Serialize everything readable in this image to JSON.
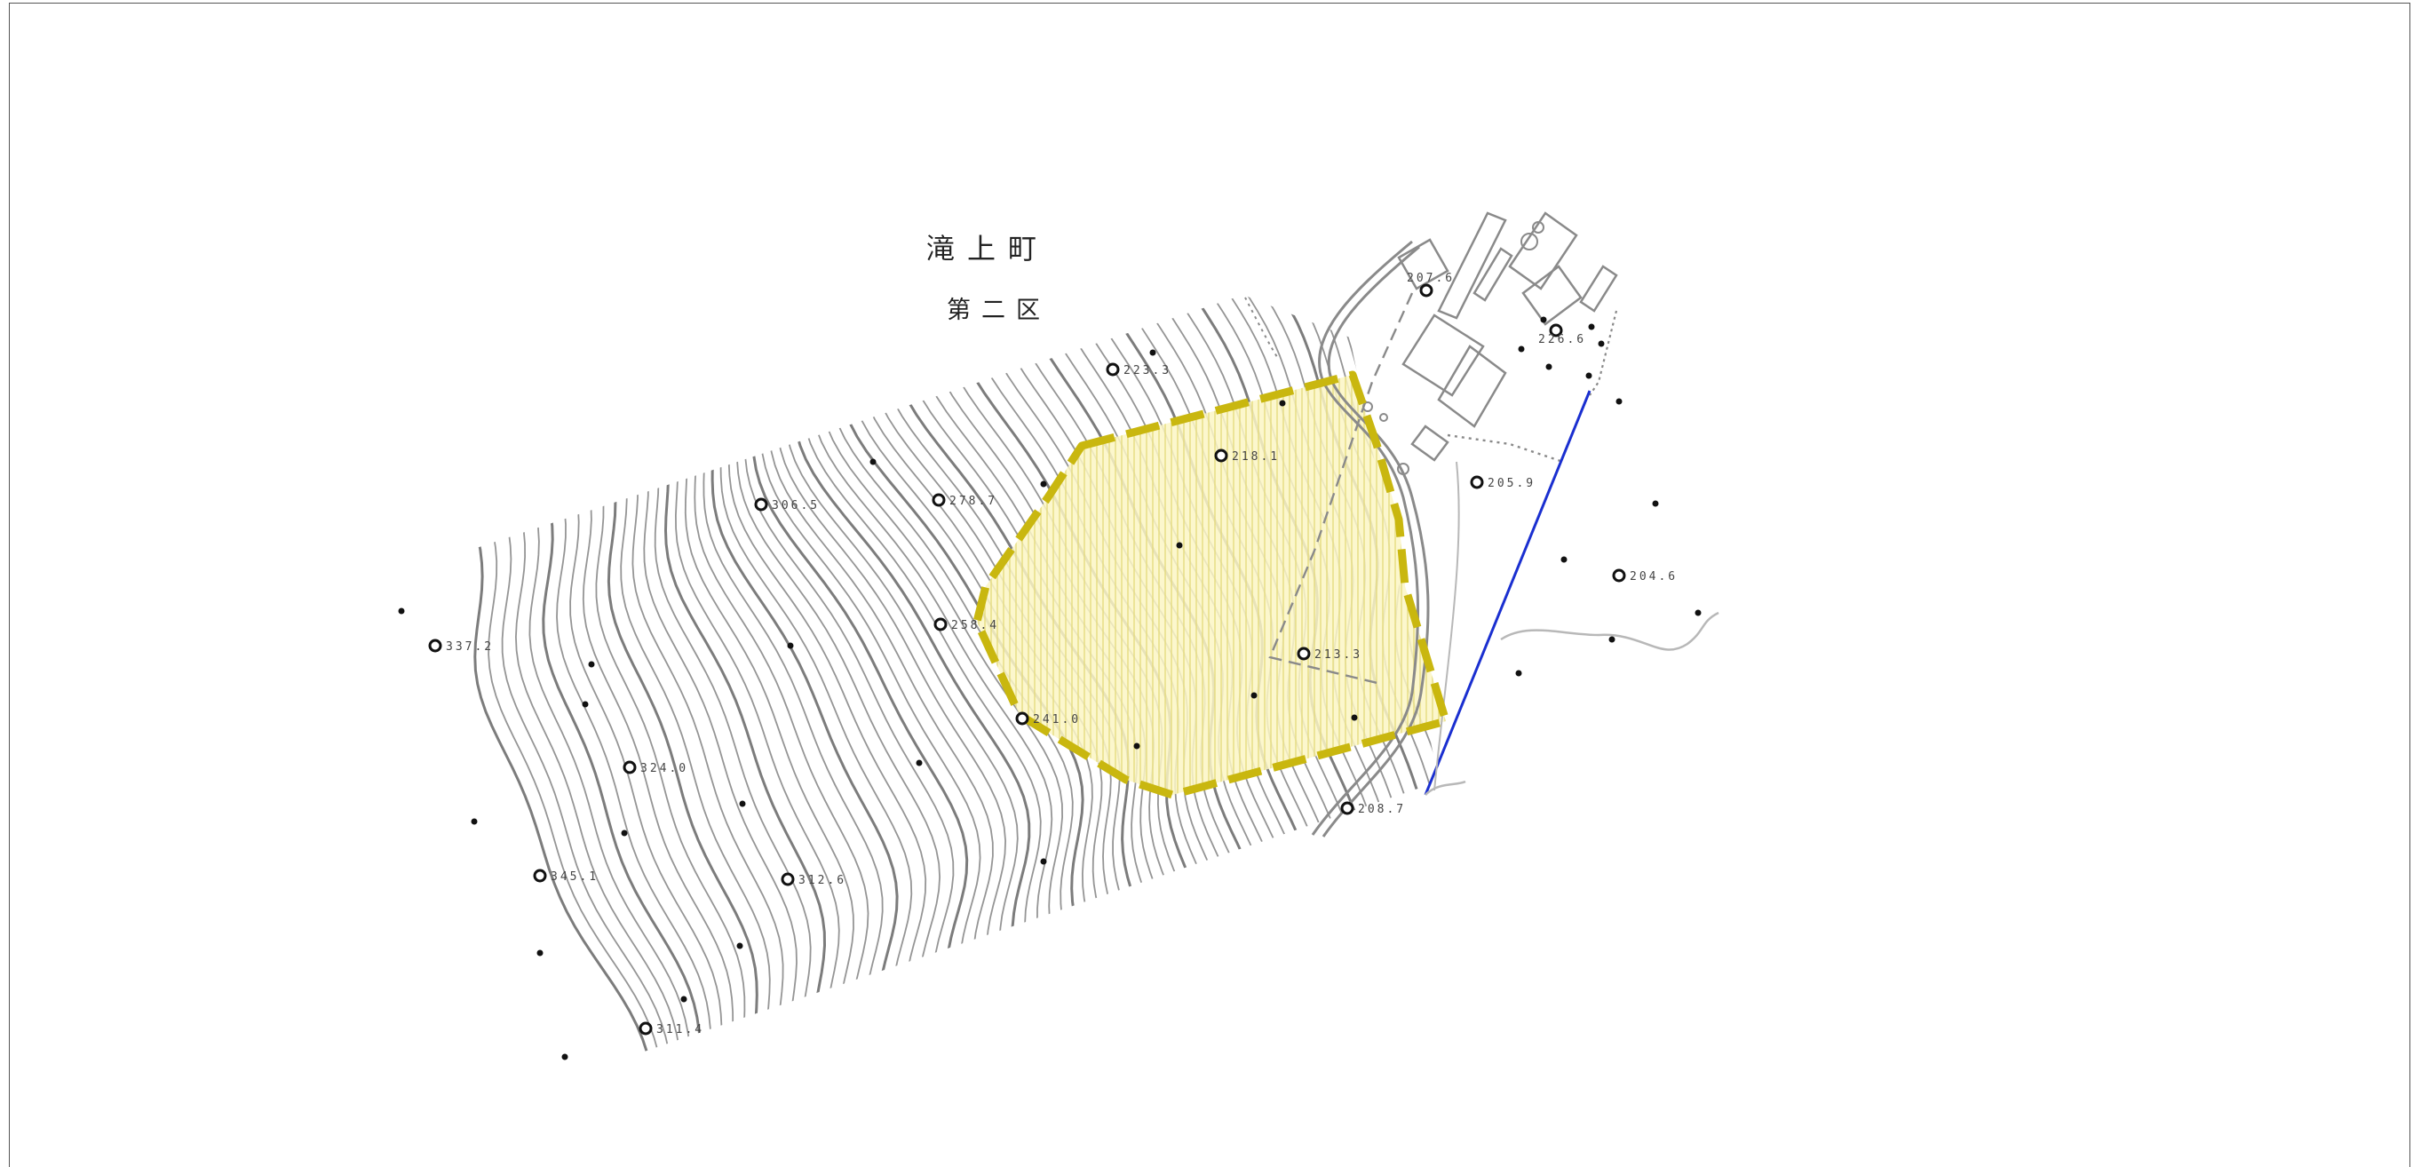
{
  "map": {
    "town_name": "滝上町",
    "district_name": "第二区",
    "colors": {
      "contour": "#8a8a8a",
      "contour_index": "#6e6e6e",
      "area_fill": "#fbf6c4",
      "area_hatch": "#e3d97a",
      "area_border": "#c9b70f",
      "blue_line": "#1a2fd0",
      "stream": "#b8b8b8",
      "structures": "#8a8a8a"
    },
    "elevation_points": [
      {
        "label": "207.6"
      },
      {
        "label": "226.6"
      },
      {
        "label": "223.3"
      },
      {
        "label": "218.1"
      },
      {
        "label": "205.9"
      },
      {
        "label": "306.5"
      },
      {
        "label": "278.7"
      },
      {
        "label": "204.6"
      },
      {
        "label": "337.2"
      },
      {
        "label": "258.4"
      },
      {
        "label": "213.3"
      },
      {
        "label": "241.0"
      },
      {
        "label": "324.0"
      },
      {
        "label": "208.7"
      },
      {
        "label": "345.1"
      },
      {
        "label": "312.6"
      },
      {
        "label": "311.4"
      }
    ]
  }
}
